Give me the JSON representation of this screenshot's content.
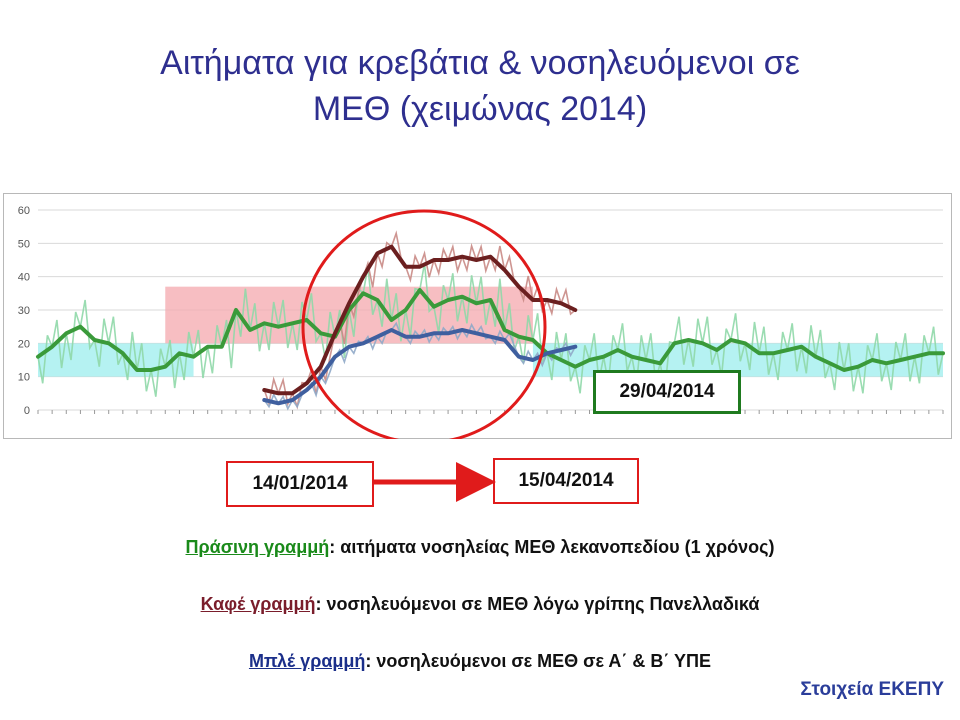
{
  "title_line1": "Αιτήματα για κρεβάτια & νοσηλευόμενοι σε",
  "title_line2": "ΜΕΘ (χειμώνας 2014)",
  "date_start": "14/01/2014",
  "date_end": "15/04/2014",
  "date_green": "29/04/2014",
  "legend": {
    "green_key": "Πράσινη γραμμή",
    "green_text": ": αιτήματα νοσηλείας ΜΕΘ λεκανοπεδίου (1 χρόνος)",
    "brown_key": "Καφέ γραμμή",
    "brown_text": ": νοσηλευόμενοι σε ΜΕΘ λόγω γρίπης Πανελλαδικά",
    "blue_key": "Μπλέ γραμμή",
    "blue_text": ": νοσηλευόμενοι σε ΜΕΘ σε Α΄ & Β΄ ΥΠΕ"
  },
  "source": "Στοιχεία ΕΚΕΠΥ",
  "colors": {
    "title": "#2e2f8f",
    "green_line": "#3a9a3a",
    "green_light": "#8fd8a8",
    "brown_line": "#6b1f1f",
    "brown_light": "#c98a85",
    "blue_line": "#3f5f9f",
    "blue_light": "#8fa8c8",
    "red_band": "#f4a8ad",
    "cyan_band": "#a8f0f0",
    "circle": "#e01b1b"
  },
  "chart_data": {
    "type": "line",
    "y_ticks": [
      "0",
      "10",
      "20",
      "30",
      "40",
      "50",
      "60"
    ],
    "ylim": [
      0,
      60
    ],
    "x_count": 65,
    "grid": true,
    "bands": [
      {
        "from": 0,
        "to": 11,
        "ymin": 10,
        "ymax": 20,
        "color": "cyan"
      },
      {
        "from": 9,
        "to": 35,
        "ymin": 20,
        "ymax": 37,
        "color": "red"
      },
      {
        "from": 35,
        "to": 64,
        "ymin": 10,
        "ymax": 20,
        "color": "cyan"
      }
    ],
    "series": [
      {
        "name": "Πράσινη γραμμή",
        "start": 0,
        "values": [
          16,
          19,
          23,
          25,
          21,
          20,
          17,
          12,
          12,
          13,
          17,
          16,
          19,
          19,
          30,
          24,
          26,
          25,
          26,
          27,
          23,
          22,
          30,
          35,
          33,
          27,
          30,
          36,
          31,
          33,
          34,
          32,
          33,
          24,
          22,
          21,
          17,
          15,
          13,
          15,
          16,
          18,
          16,
          15,
          14,
          20,
          21,
          20,
          18,
          21,
          20,
          17,
          17,
          18,
          19,
          16,
          14,
          12,
          13,
          15,
          14,
          15,
          16,
          17,
          17
        ]
      },
      {
        "name": "Καφέ γραμμή",
        "start": 16,
        "values": [
          6,
          5,
          5,
          8,
          13,
          23,
          32,
          40,
          47,
          49,
          43,
          43,
          45,
          45,
          46,
          45,
          46,
          42,
          37,
          33,
          33,
          32,
          30
        ]
      },
      {
        "name": "Μπλέ γραμμή",
        "start": 16,
        "values": [
          3,
          2,
          3,
          6,
          10,
          16,
          19,
          20,
          22,
          24,
          22,
          22,
          23,
          23,
          24,
          23,
          22,
          21,
          16,
          15,
          17,
          18,
          19
        ]
      }
    ]
  }
}
